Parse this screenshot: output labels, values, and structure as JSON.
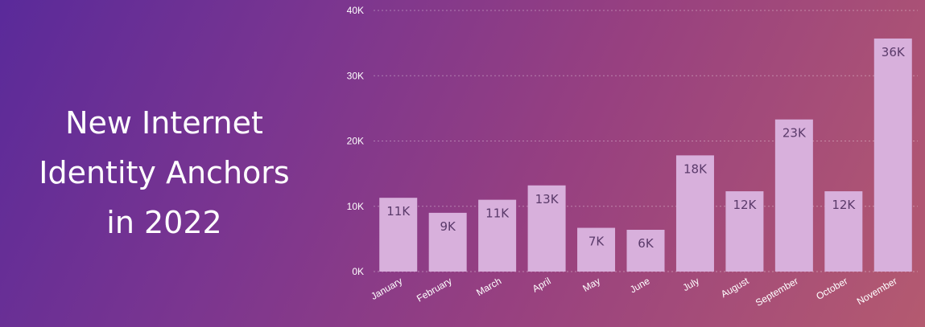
{
  "headline": {
    "lines": [
      "New Internet",
      "Identity Anchors",
      "in 2022"
    ]
  },
  "colors": {
    "bar": "#d8b0dc",
    "data_label": "#5a3a6a",
    "axis_text": "#ffffff"
  },
  "chart_data": {
    "type": "bar",
    "title": "",
    "xlabel": "",
    "ylabel": "",
    "categories": [
      "January",
      "February",
      "March",
      "April",
      "May",
      "June",
      "July",
      "August",
      "September",
      "October",
      "November"
    ],
    "values": [
      11300,
      9000,
      11000,
      13200,
      6700,
      6400,
      17800,
      12300,
      23300,
      12300,
      35700
    ],
    "data_labels": [
      "11K",
      "9K",
      "11K",
      "13K",
      "7K",
      "6K",
      "18K",
      "12K",
      "23K",
      "12K",
      "36K"
    ],
    "ylim": [
      0,
      40000
    ],
    "yticks": [
      0,
      10000,
      20000,
      30000,
      40000
    ],
    "ytick_labels": [
      "0K",
      "10K",
      "20K",
      "30K",
      "40K"
    ],
    "grid": true,
    "legend": "none"
  }
}
